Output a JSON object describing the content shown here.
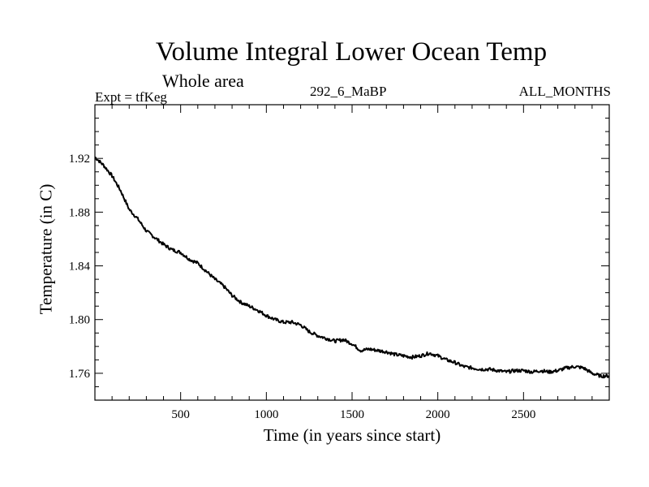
{
  "chart_data": {
    "type": "line",
    "title": "Volume Integral Lower Ocean Temp",
    "subtitle": "Whole area",
    "left_label": "Expt = tfKeg",
    "center_label": "292_6_MaBP",
    "right_label": "ALL_MONTHS",
    "xlabel": "Time (in years since start)",
    "ylabel": "Temperature (in C)",
    "xlim": [
      0,
      3000
    ],
    "ylim": [
      1.74,
      1.96
    ],
    "x_ticks": [
      500,
      1000,
      1500,
      2000,
      2500
    ],
    "y_ticks": [
      "1.76",
      "1.80",
      "1.84",
      "1.88",
      "1.92"
    ],
    "grid": false,
    "series": [
      {
        "color": "#000000",
        "x": [
          0,
          50,
          100,
          150,
          200,
          250,
          300,
          350,
          400,
          450,
          500,
          550,
          600,
          650,
          700,
          750,
          800,
          850,
          900,
          950,
          1000,
          1050,
          1100,
          1150,
          1200,
          1250,
          1300,
          1350,
          1400,
          1450,
          1500,
          1550,
          1600,
          1650,
          1700,
          1750,
          1800,
          1850,
          1900,
          1950,
          2000,
          2050,
          2100,
          2150,
          2200,
          2250,
          2300,
          2350,
          2400,
          2450,
          2500,
          2550,
          2600,
          2650,
          2700,
          2750,
          2800,
          2850,
          2900,
          2950,
          3000
        ],
        "values": [
          1.921,
          1.915,
          1.907,
          1.896,
          1.882,
          1.875,
          1.866,
          1.861,
          1.856,
          1.852,
          1.85,
          1.845,
          1.842,
          1.836,
          1.83,
          1.825,
          1.818,
          1.813,
          1.81,
          1.807,
          1.803,
          1.8,
          1.798,
          1.798,
          1.796,
          1.791,
          1.788,
          1.786,
          1.784,
          1.785,
          1.782,
          1.777,
          1.778,
          1.777,
          1.776,
          1.774,
          1.773,
          1.772,
          1.773,
          1.775,
          1.773,
          1.77,
          1.768,
          1.765,
          1.764,
          1.763,
          1.763,
          1.762,
          1.761,
          1.762,
          1.762,
          1.761,
          1.762,
          1.761,
          1.762,
          1.764,
          1.765,
          1.764,
          1.76,
          1.758,
          1.758
        ]
      }
    ]
  }
}
